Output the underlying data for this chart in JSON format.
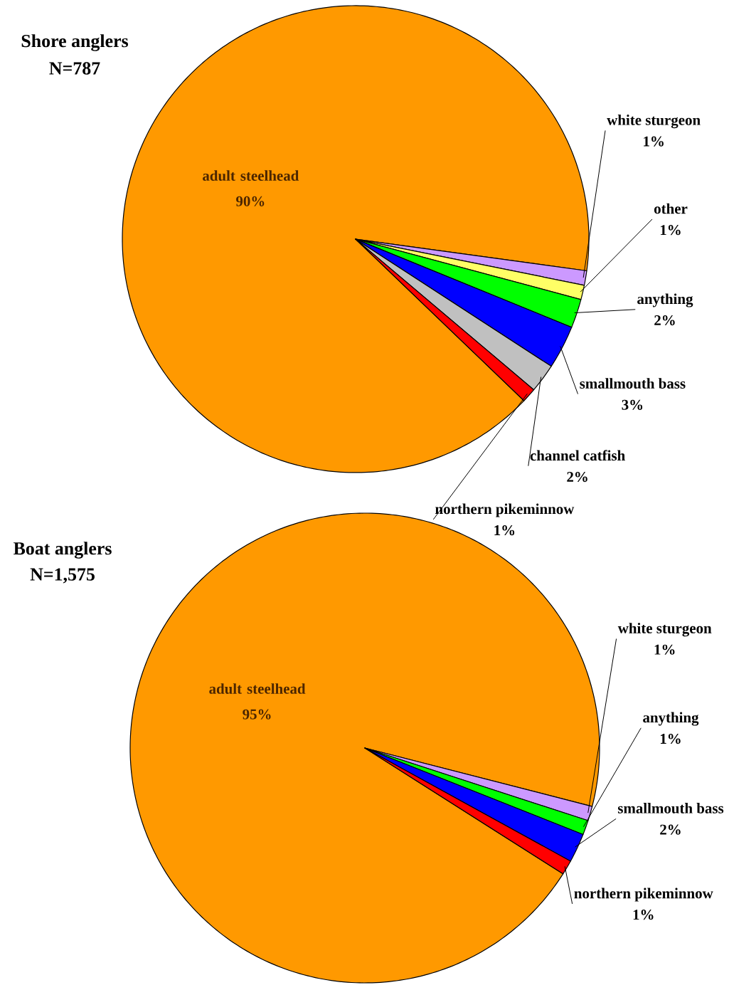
{
  "chart_data": [
    {
      "type": "pie",
      "title": "Shore anglers",
      "subtitle": "N=787",
      "categories": [
        "adult steelhead",
        "white sturgeon",
        "other",
        "anything",
        "smallmouth bass",
        "channel catfish",
        "northern pikeminnow"
      ],
      "values": [
        90,
        1,
        1,
        2,
        3,
        2,
        1
      ],
      "value_labels": [
        "90%",
        "1%",
        "1%",
        "2%",
        "3%",
        "2%",
        "1%"
      ],
      "colors": [
        "#ff9900",
        "#cc99ff",
        "#ffff66",
        "#00ff00",
        "#0000ff",
        "#c0c0c0",
        "#ff0000"
      ]
    },
    {
      "type": "pie",
      "title": "Boat anglers",
      "subtitle": "N=1,575",
      "categories": [
        "adult steelhead",
        "white sturgeon",
        "anything",
        "smallmouth bass",
        "northern pikeminnow"
      ],
      "values": [
        95,
        1,
        1,
        2,
        1
      ],
      "value_labels": [
        "95%",
        "1%",
        "1%",
        "2%",
        "1%"
      ],
      "colors": [
        "#ff9900",
        "#cc99ff",
        "#00ff00",
        "#0000ff",
        "#ff0000"
      ]
    }
  ]
}
